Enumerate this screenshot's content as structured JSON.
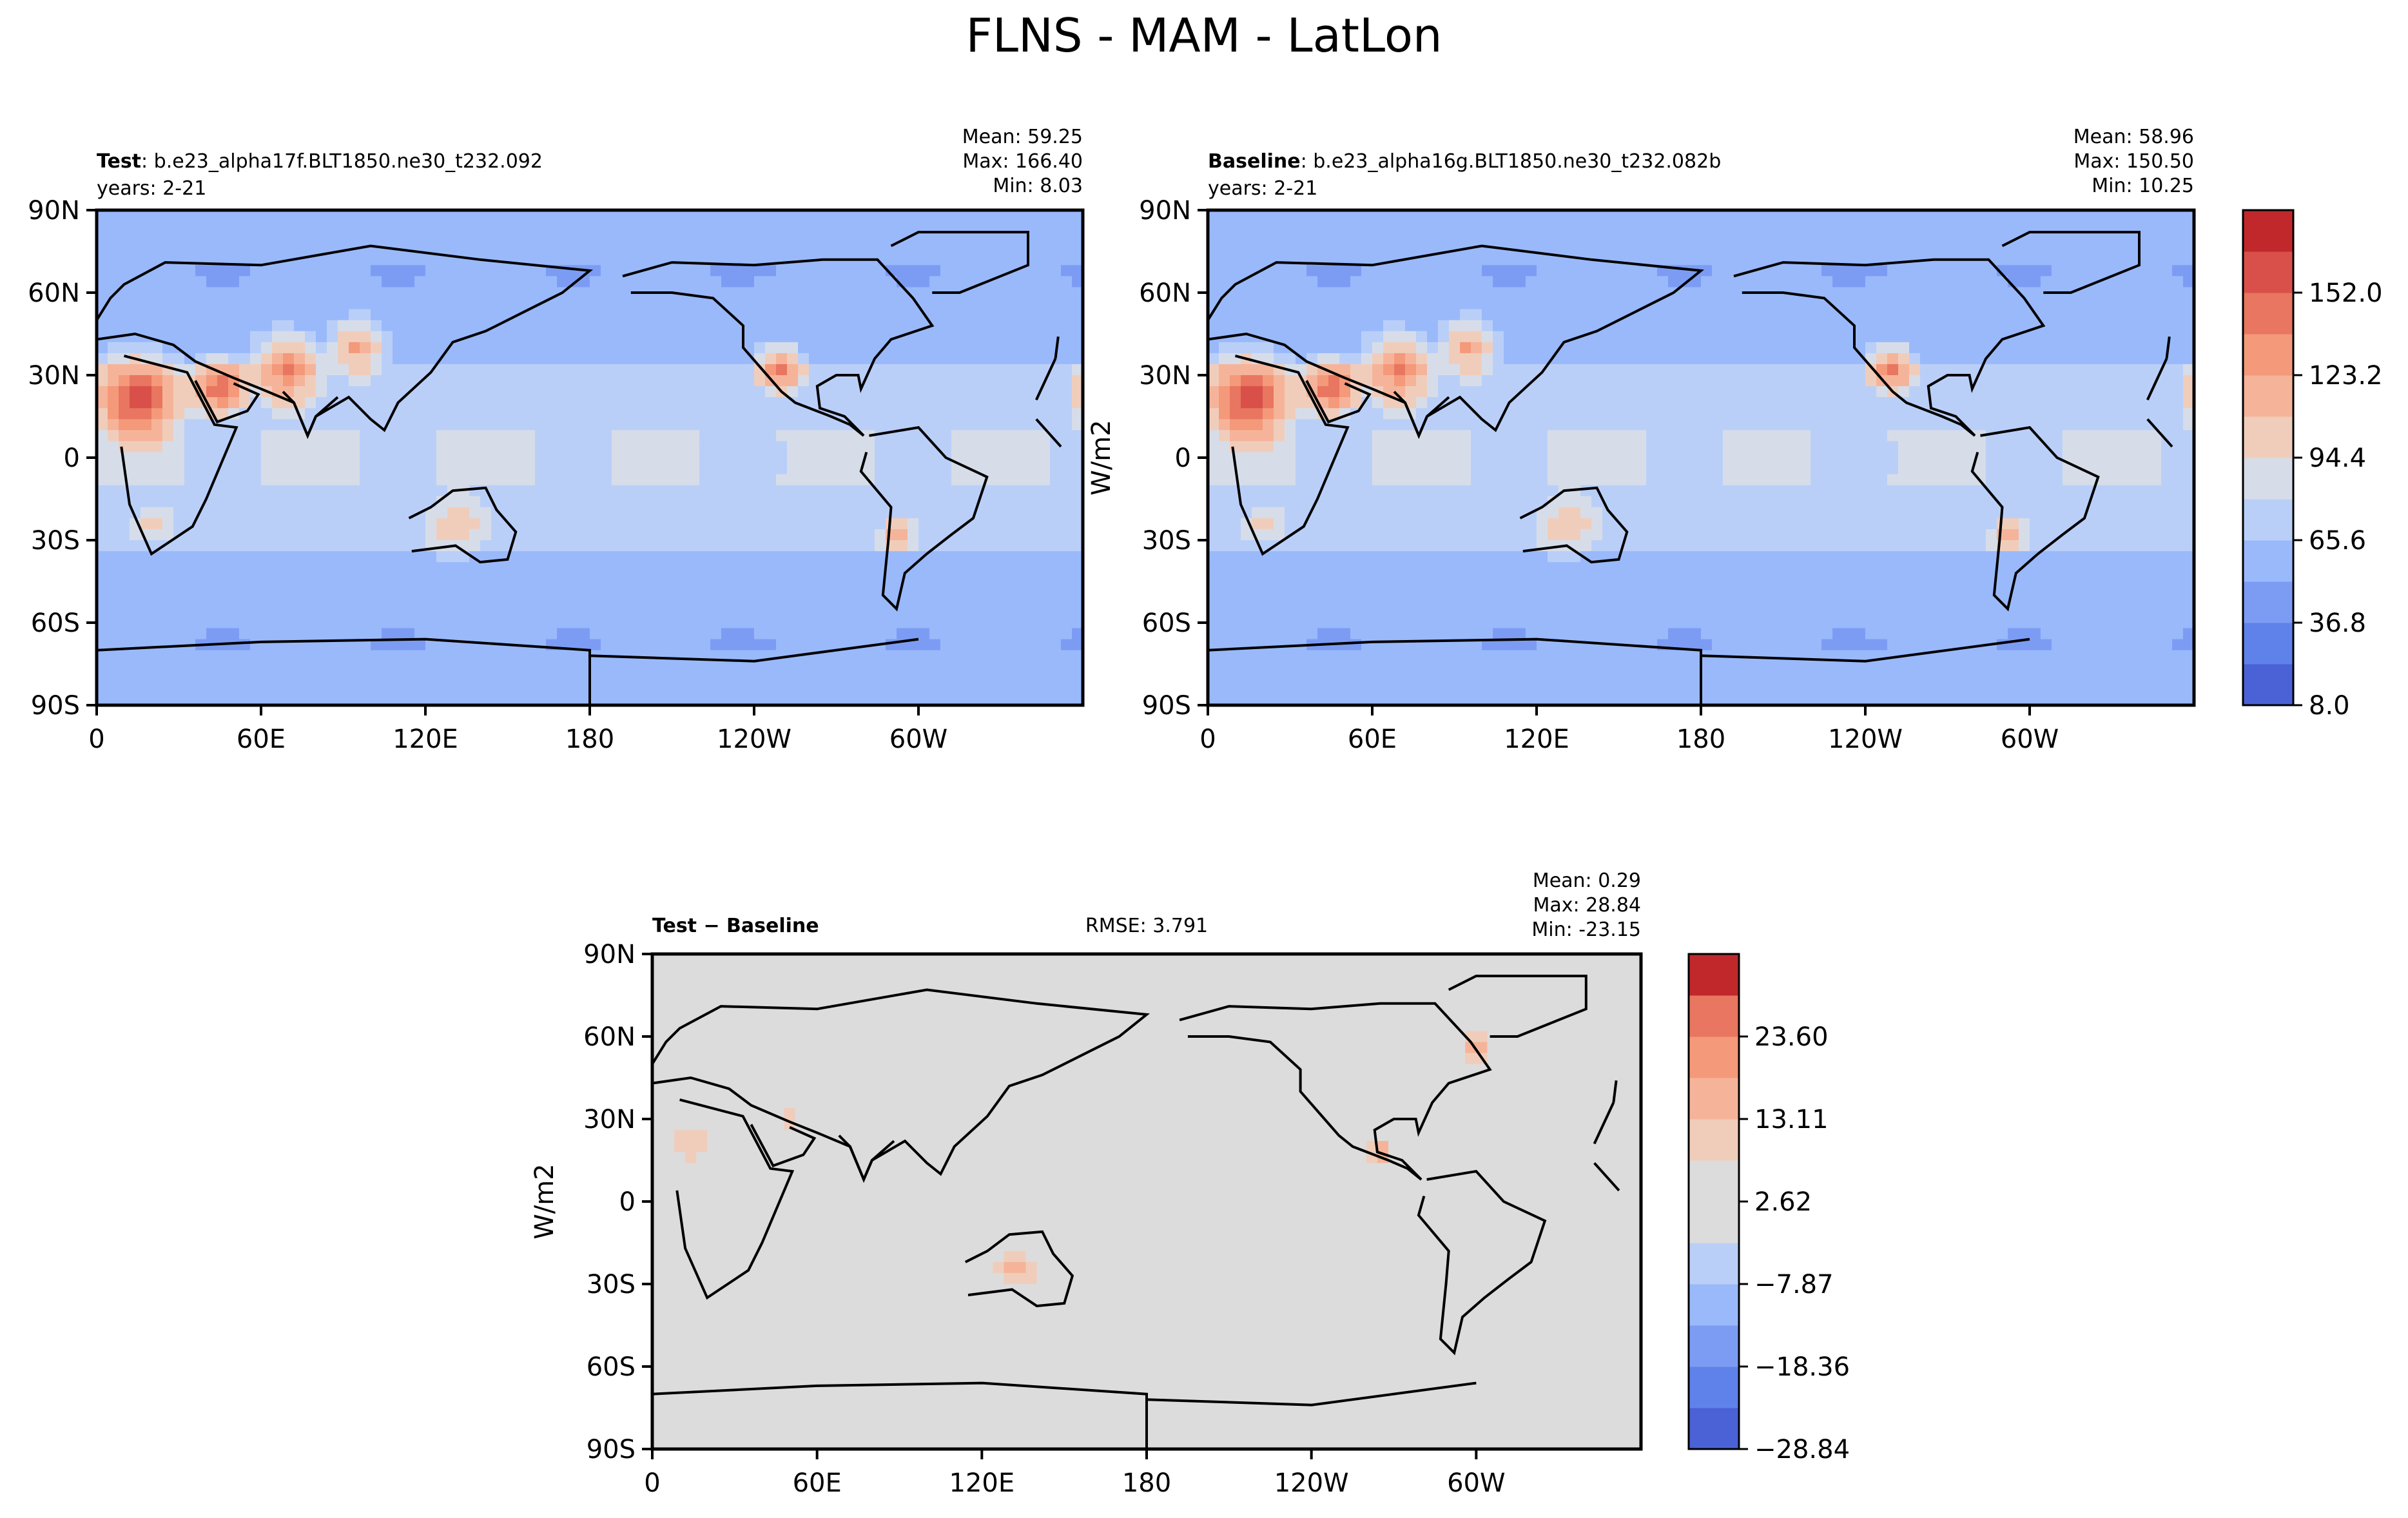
{
  "title": "FLNS - MAM - LatLon",
  "chart_data": [
    {
      "type": "heatmap",
      "panel": "test",
      "label_bold": "Test",
      "label_rest": ": b.e23_alpha17f.BLT1850.ne30_t232.092",
      "years": "years: 2-21",
      "stats": {
        "mean": "Mean: 59.25",
        "max": "Max: 166.40",
        "min": "Min:  8.03"
      },
      "xticks": [
        "0",
        "60E",
        "120E",
        "180",
        "120W",
        "60W"
      ],
      "yticks": [
        "90N",
        "60N",
        "30N",
        "0",
        "30S",
        "60S",
        "90S"
      ]
    },
    {
      "type": "heatmap",
      "panel": "baseline",
      "label_bold": "Baseline",
      "label_rest": ": b.e23_alpha16g.BLT1850.ne30_t232.082b",
      "years": "years: 2-21",
      "stats": {
        "mean": "Mean: 58.96",
        "max": "Max: 150.50",
        "min": "Min: 10.25"
      },
      "xticks": [
        "0",
        "60E",
        "120E",
        "180",
        "120W",
        "60W"
      ],
      "yticks": [
        "90N",
        "60N",
        "30N",
        "0",
        "30S",
        "60S",
        "90S"
      ],
      "ylabel": "W/m2",
      "colorbar": {
        "ticks": [
          "8.0",
          "36.8",
          "65.6",
          "94.4",
          "123.2",
          "152.0"
        ],
        "colors": [
          "#4a62d6",
          "#5f82ea",
          "#7c9cf4",
          "#9ab9fb",
          "#bacff8",
          "#d6dde9",
          "#f0cdbb",
          "#f5b49a",
          "#f4997a",
          "#e87660",
          "#d9504a",
          "#c0282c"
        ]
      }
    },
    {
      "type": "heatmap",
      "panel": "difference",
      "label_bold": "Test − Baseline",
      "rmse": "RMSE: 3.791",
      "stats": {
        "mean": "Mean:  0.29",
        "max": "Max: 28.84",
        "min": "Min: -23.15"
      },
      "xticks": [
        "0",
        "60E",
        "120E",
        "180",
        "120W",
        "60W"
      ],
      "yticks": [
        "90N",
        "60N",
        "30N",
        "0",
        "30S",
        "60S",
        "90S"
      ],
      "ylabel": "W/m2",
      "colorbar": {
        "ticks": [
          "−28.84",
          "−18.36",
          "−7.87",
          "2.62",
          "13.11",
          "23.60"
        ],
        "colors": [
          "#4a62d6",
          "#5f82ea",
          "#7c9cf4",
          "#9ab9fb",
          "#bacff8",
          "#dcdcdc",
          "#dcdcdc",
          "#f0cdbb",
          "#f5b49a",
          "#f4997a",
          "#e87660",
          "#c0282c"
        ]
      }
    }
  ]
}
